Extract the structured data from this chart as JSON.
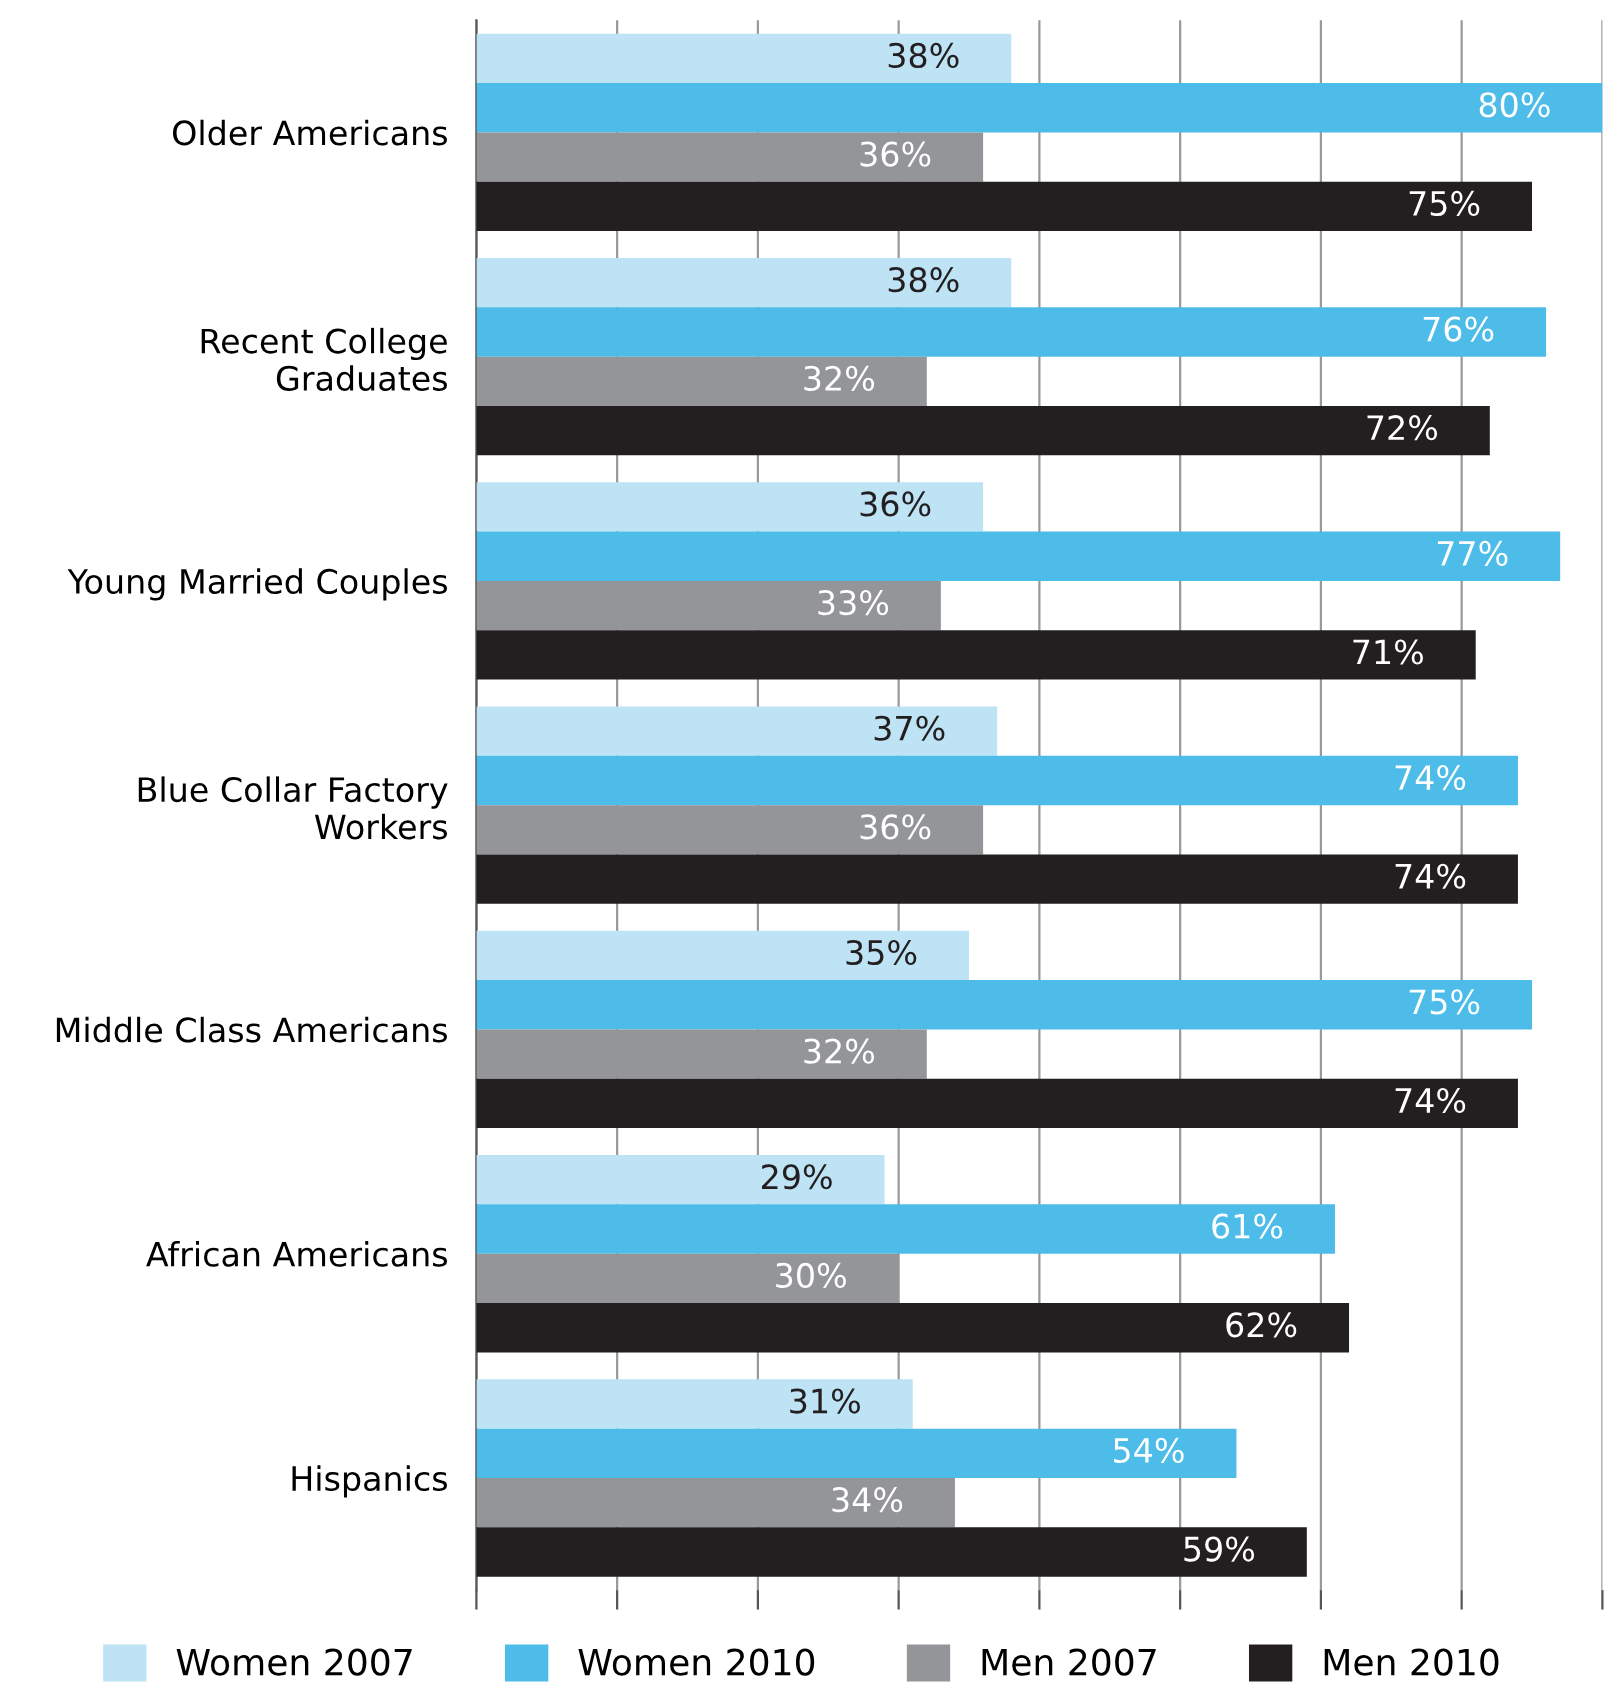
{
  "chart_data": {
    "type": "bar",
    "orientation": "horizontal",
    "categories": [
      "Older Americans",
      "Recent College\nGraduates",
      "Young Married Couples",
      "Blue Collar Factory\nWorkers",
      "Middle Class Americans",
      "African Americans",
      "Hispanics"
    ],
    "series": [
      {
        "name": "Women 2007",
        "color": "#bde3f5",
        "values": [
          38,
          38,
          36,
          37,
          35,
          29,
          31
        ],
        "value_labels": [
          "38%",
          "38%",
          "36%",
          "37%",
          "35%",
          "29%",
          "31%"
        ]
      },
      {
        "name": "Women 2010",
        "color": "#4dbce9",
        "values": [
          80,
          76,
          77,
          74,
          75,
          61,
          54
        ],
        "value_labels": [
          "80%",
          "76%",
          "77%",
          "74%",
          "75%",
          "61%",
          "54%"
        ]
      },
      {
        "name": "Men 2007",
        "color": "#939598",
        "values": [
          36,
          32,
          33,
          36,
          32,
          30,
          34
        ],
        "value_labels": [
          "36%",
          "32%",
          "33%",
          "36%",
          "32%",
          "30%",
          "34%"
        ]
      },
      {
        "name": "Men 2010",
        "color": "#231f20",
        "values": [
          75,
          72,
          71,
          74,
          74,
          62,
          59
        ],
        "value_labels": [
          "75%",
          "72%",
          "71%",
          "74%",
          "74%",
          "62%",
          "59%"
        ]
      }
    ],
    "tick_labels": "y",
    "grid": "x",
    "legend": "bottom"
  }
}
